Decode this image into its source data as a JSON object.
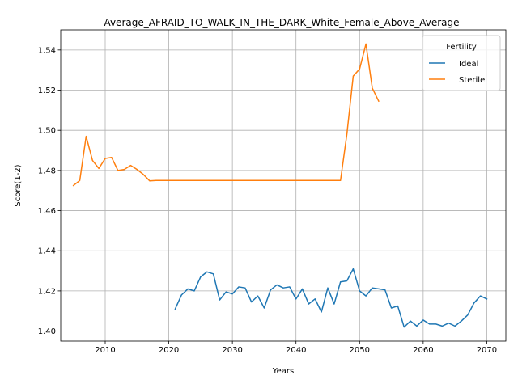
{
  "chart_data": {
    "type": "line",
    "title": "Average_AFRAID_TO_WALK_IN_THE_DARK_White_Female_Above_Average",
    "xlabel": "Years",
    "ylabel": "Score(1-2)",
    "xlim": [
      2003,
      2073
    ],
    "ylim": [
      1.395,
      1.55
    ],
    "xticks": [
      2010,
      2020,
      2030,
      2040,
      2050,
      2060,
      2070
    ],
    "yticks": [
      1.4,
      1.42,
      1.44,
      1.46,
      1.48,
      1.5,
      1.52,
      1.54
    ],
    "xtick_labels": [
      "2010",
      "2020",
      "2030",
      "2040",
      "2050",
      "2060",
      "2070"
    ],
    "ytick_labels": [
      "1.40",
      "1.42",
      "1.44",
      "1.46",
      "1.48",
      "1.50",
      "1.52",
      "1.54"
    ],
    "grid": true,
    "legend": {
      "title": "Fertility",
      "placement": "top-right"
    },
    "series": [
      {
        "name": "Ideal",
        "color": "#1f77b4",
        "x": [
          2021,
          2022,
          2023,
          2024,
          2025,
          2026,
          2027,
          2028,
          2029,
          2030,
          2031,
          2032,
          2033,
          2034,
          2035,
          2036,
          2037,
          2038,
          2039,
          2040,
          2041,
          2042,
          2043,
          2044,
          2045,
          2046,
          2047,
          2048,
          2049,
          2050,
          2051,
          2052,
          2053,
          2054,
          2055,
          2056,
          2057,
          2058,
          2059,
          2060,
          2061,
          2062,
          2063,
          2064,
          2065,
          2066,
          2067,
          2068,
          2069,
          2070
        ],
        "y": [
          1.411,
          1.418,
          1.421,
          1.42,
          1.427,
          1.4295,
          1.4285,
          1.4155,
          1.4195,
          1.4185,
          1.422,
          1.4215,
          1.4145,
          1.4175,
          1.4115,
          1.4205,
          1.423,
          1.4215,
          1.422,
          1.416,
          1.421,
          1.4135,
          1.416,
          1.4095,
          1.4215,
          1.4135,
          1.4245,
          1.425,
          1.431,
          1.42,
          1.4175,
          1.4215,
          1.421,
          1.4205,
          1.4115,
          1.4125,
          1.402,
          1.405,
          1.4025,
          1.4055,
          1.4035,
          1.4035,
          1.4025,
          1.404,
          1.4025,
          1.405,
          1.408,
          1.414,
          1.4175,
          1.416
        ]
      },
      {
        "name": "Sterile",
        "color": "#ff7f0e",
        "x": [
          2005,
          2006,
          2007,
          2008,
          2009,
          2010,
          2011,
          2012,
          2013,
          2014,
          2015,
          2016,
          2017,
          2018,
          2019,
          2020,
          2021,
          2022,
          2023,
          2024,
          2025,
          2026,
          2027,
          2028,
          2029,
          2030,
          2031,
          2032,
          2033,
          2034,
          2035,
          2036,
          2037,
          2038,
          2039,
          2040,
          2041,
          2042,
          2043,
          2044,
          2045,
          2046,
          2047,
          2048,
          2049,
          2050,
          2051,
          2052,
          2053
        ],
        "y": [
          1.4725,
          1.475,
          1.497,
          1.485,
          1.481,
          1.486,
          1.4865,
          1.48,
          1.4805,
          1.4825,
          1.4805,
          1.478,
          1.4748,
          1.475,
          1.475,
          1.475,
          1.475,
          1.475,
          1.475,
          1.475,
          1.475,
          1.475,
          1.475,
          1.475,
          1.475,
          1.475,
          1.475,
          1.475,
          1.475,
          1.475,
          1.475,
          1.475,
          1.475,
          1.475,
          1.475,
          1.475,
          1.475,
          1.475,
          1.475,
          1.475,
          1.475,
          1.475,
          1.475,
          1.498,
          1.527,
          1.5305,
          1.543,
          1.521,
          1.5145
        ]
      }
    ]
  }
}
